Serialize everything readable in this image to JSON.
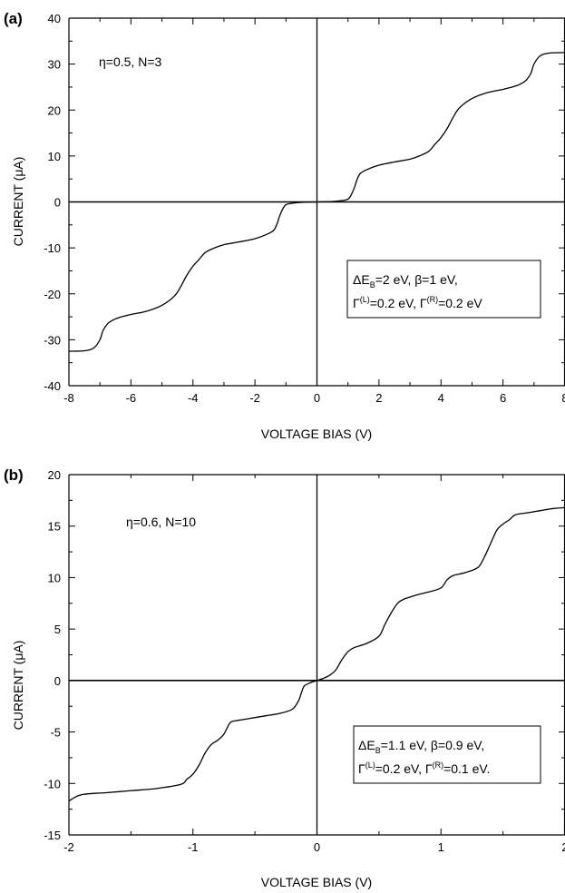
{
  "chart_data": [
    {
      "panel_label": "(a)",
      "type": "line",
      "xlabel": "VOLTAGE BIAS (V)",
      "ylabel": "CURRENT (μA)",
      "xlim": [
        -8,
        8
      ],
      "ylim": [
        -40,
        40
      ],
      "xticks": [
        -8,
        -6,
        -4,
        -2,
        0,
        2,
        4,
        6,
        8
      ],
      "yticks": [
        -40,
        -30,
        -20,
        -10,
        0,
        10,
        20,
        30,
        40
      ],
      "x_tick_labels": [
        "-8",
        "-6",
        "-4",
        "-2",
        "0",
        "2",
        "4",
        "6",
        "8"
      ],
      "y_tick_labels": [
        "-40",
        "-30",
        "-20",
        "-10",
        "0",
        "10",
        "20",
        "30",
        "40"
      ],
      "annotation": "η=0.5, N=3",
      "legend_box": {
        "line1": {
          "p1": "ΔE",
          "p1sub": "B",
          "p2": "=2 eV, β=1 eV,"
        },
        "line2": {
          "p1": "Γ",
          "p1sup": "(L)",
          "p2": "=0.2 eV, Γ",
          "p2sup": "(R)",
          "p3": "=0.2 eV"
        }
      },
      "series": [
        {
          "x": [
            -8.0,
            -7.5,
            -7.2,
            -7.0,
            -6.9,
            -6.75,
            -6.6,
            -6.4,
            -6.0,
            -5.5,
            -5.0,
            -4.6,
            -4.4,
            -4.2,
            -4.0,
            -3.8,
            -3.6,
            -3.3,
            -3.0,
            -2.5,
            -2.0,
            -1.6,
            -1.4,
            -1.3,
            -1.2,
            -1.1,
            -1.0,
            -0.8,
            -0.5,
            0.0,
            0.5,
            0.8,
            1.0,
            1.1,
            1.2,
            1.3,
            1.4,
            1.6,
            2.0,
            2.5,
            3.0,
            3.3,
            3.6,
            3.8,
            4.0,
            4.2,
            4.4,
            4.6,
            5.0,
            5.5,
            6.0,
            6.4,
            6.6,
            6.75,
            6.9,
            7.0,
            7.2,
            7.5,
            8.0
          ],
          "y": [
            -32.5,
            -32.4,
            -31.8,
            -30.0,
            -28.0,
            -26.5,
            -25.8,
            -25.2,
            -24.5,
            -23.8,
            -22.5,
            -20.5,
            -18.5,
            -16.0,
            -14.0,
            -12.5,
            -11.0,
            -10.0,
            -9.3,
            -8.7,
            -8.0,
            -7.0,
            -6.2,
            -5.0,
            -3.0,
            -1.5,
            -0.6,
            -0.3,
            -0.1,
            0.0,
            0.1,
            0.3,
            0.6,
            1.5,
            3.0,
            5.0,
            6.2,
            7.0,
            8.0,
            8.7,
            9.3,
            10.0,
            11.0,
            12.5,
            14.0,
            16.0,
            18.5,
            20.5,
            22.5,
            23.8,
            24.5,
            25.2,
            25.8,
            26.5,
            28.0,
            30.0,
            31.8,
            32.4,
            32.5
          ]
        }
      ]
    },
    {
      "panel_label": "(b)",
      "type": "line",
      "xlabel": "VOLTAGE BIAS (V)",
      "ylabel": "CURRENT (μA)",
      "xlim": [
        -2,
        2
      ],
      "ylim": [
        -15,
        20
      ],
      "xticks": [
        -2,
        -1,
        0,
        1,
        2
      ],
      "yticks": [
        -15,
        -10,
        -5,
        0,
        5,
        10,
        15,
        20
      ],
      "x_tick_labels": [
        "-2",
        "-1",
        "0",
        "1",
        "2"
      ],
      "y_tick_labels": [
        "-15",
        "-10",
        "-5",
        "0",
        "5",
        "10",
        "15",
        "20"
      ],
      "annotation": "η=0.6, N=10",
      "legend_box": {
        "line1": {
          "p1": "ΔE",
          "p1sub": "B",
          "p2": "=1.1 eV, β=0.9 eV,"
        },
        "line2": {
          "p1": "Γ",
          "p1sup": "(L)",
          "p2": "=0.2 eV, Γ",
          "p2sup": "(R)",
          "p3": "=0.1 eV."
        }
      },
      "series": [
        {
          "x": [
            -2.0,
            -1.9,
            -1.7,
            -1.5,
            -1.3,
            -1.1,
            -1.05,
            -1.0,
            -0.95,
            -0.9,
            -0.85,
            -0.8,
            -0.75,
            -0.7,
            -0.65,
            -0.6,
            -0.5,
            -0.4,
            -0.3,
            -0.2,
            -0.15,
            -0.12,
            -0.1,
            -0.05,
            0.0,
            0.05,
            0.1,
            0.15,
            0.2,
            0.25,
            0.3,
            0.4,
            0.5,
            0.55,
            0.6,
            0.65,
            0.7,
            0.75,
            0.8,
            0.9,
            1.0,
            1.05,
            1.1,
            1.2,
            1.3,
            1.35,
            1.4,
            1.45,
            1.5,
            1.55,
            1.6,
            1.7,
            1.8,
            1.9,
            2.0
          ],
          "y": [
            -11.7,
            -11.1,
            -10.9,
            -10.7,
            -10.5,
            -10.1,
            -9.6,
            -9.1,
            -8.2,
            -7.0,
            -6.2,
            -5.8,
            -5.2,
            -4.1,
            -3.9,
            -3.8,
            -3.6,
            -3.4,
            -3.2,
            -2.8,
            -2.0,
            -1.0,
            -0.5,
            -0.2,
            0.0,
            0.2,
            0.5,
            1.0,
            2.0,
            2.8,
            3.2,
            3.6,
            4.3,
            5.5,
            6.6,
            7.5,
            7.9,
            8.1,
            8.3,
            8.6,
            9.0,
            9.8,
            10.2,
            10.5,
            11.0,
            12.0,
            13.3,
            14.6,
            15.2,
            15.6,
            16.1,
            16.3,
            16.5,
            16.7,
            16.8
          ]
        }
      ]
    }
  ]
}
